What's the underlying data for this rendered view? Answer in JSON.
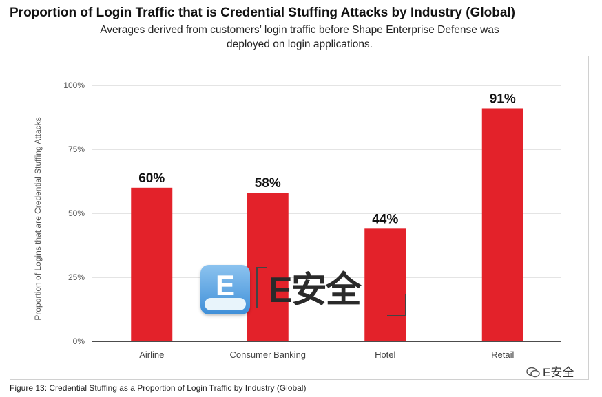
{
  "header": {
    "title": "Proportion of Login Traffic that is Credential Stuffing Attacks by Industry (Global)",
    "subtitle_line1": "Averages derived from customers’ login traffic before Shape Enterprise Defense was",
    "subtitle_line2": "deployed on login applications."
  },
  "caption": "Figure 13: Credential Stuffing as a Proportion of Login Traffic by Industry (Global)",
  "watermark": {
    "badge_letter": "E",
    "center_text": "E安全",
    "corner_text": "E安全"
  },
  "chart_data": {
    "type": "bar",
    "ylabel": "Proportion of Logins that are Credential Stuffing Attacks",
    "xlabel": "",
    "categories": [
      "Airline",
      "Consumer Banking",
      "Hotel",
      "Retail"
    ],
    "values": [
      60,
      58,
      44,
      91
    ],
    "data_labels": [
      "60%",
      "58%",
      "44%",
      "91%"
    ],
    "ylim": [
      0,
      100
    ],
    "yticks": [
      0,
      25,
      50,
      75,
      100
    ],
    "ytick_labels": [
      "0%",
      "25%",
      "50%",
      "75%",
      "100%"
    ],
    "grid": true,
    "bar_color": "#e3222a",
    "grid_color": "#c8c8c8"
  }
}
